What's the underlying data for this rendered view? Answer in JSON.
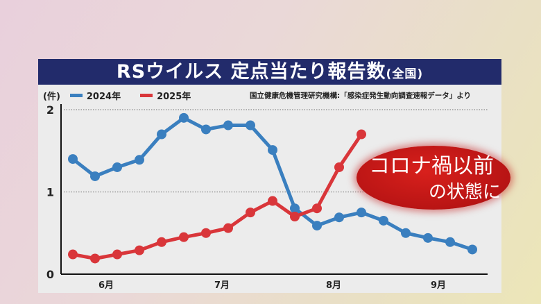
{
  "title": {
    "main": "RSウイルス 定点当たり報告数",
    "sub": "(全国)"
  },
  "source": "国立健康危機管理研究機構:「感染症発生動向調査速報データ」より",
  "callout": {
    "line1": "コロナ禍以前",
    "line2": "の状態に"
  },
  "chart_data": {
    "type": "line",
    "ylabel": "(件)",
    "ylim": [
      0,
      2
    ],
    "yticks": [
      0,
      1,
      2
    ],
    "grid": true,
    "legend": "top-left",
    "month_labels": [
      "6月",
      "7月",
      "8月",
      "9月"
    ],
    "series": [
      {
        "name": "2024年",
        "color": "#3a7fbf",
        "values": [
          1.4,
          1.19,
          1.3,
          1.39,
          1.7,
          1.9,
          1.76,
          1.81,
          1.81,
          1.51,
          0.8,
          0.59,
          0.69,
          0.75,
          0.65,
          0.5,
          0.44,
          0.39,
          0.3
        ]
      },
      {
        "name": "2025年",
        "color": "#d9363a",
        "values": [
          0.24,
          0.19,
          0.24,
          0.29,
          0.39,
          0.45,
          0.5,
          0.56,
          0.75,
          0.89,
          0.7,
          0.8,
          1.3,
          1.7
        ]
      }
    ]
  }
}
